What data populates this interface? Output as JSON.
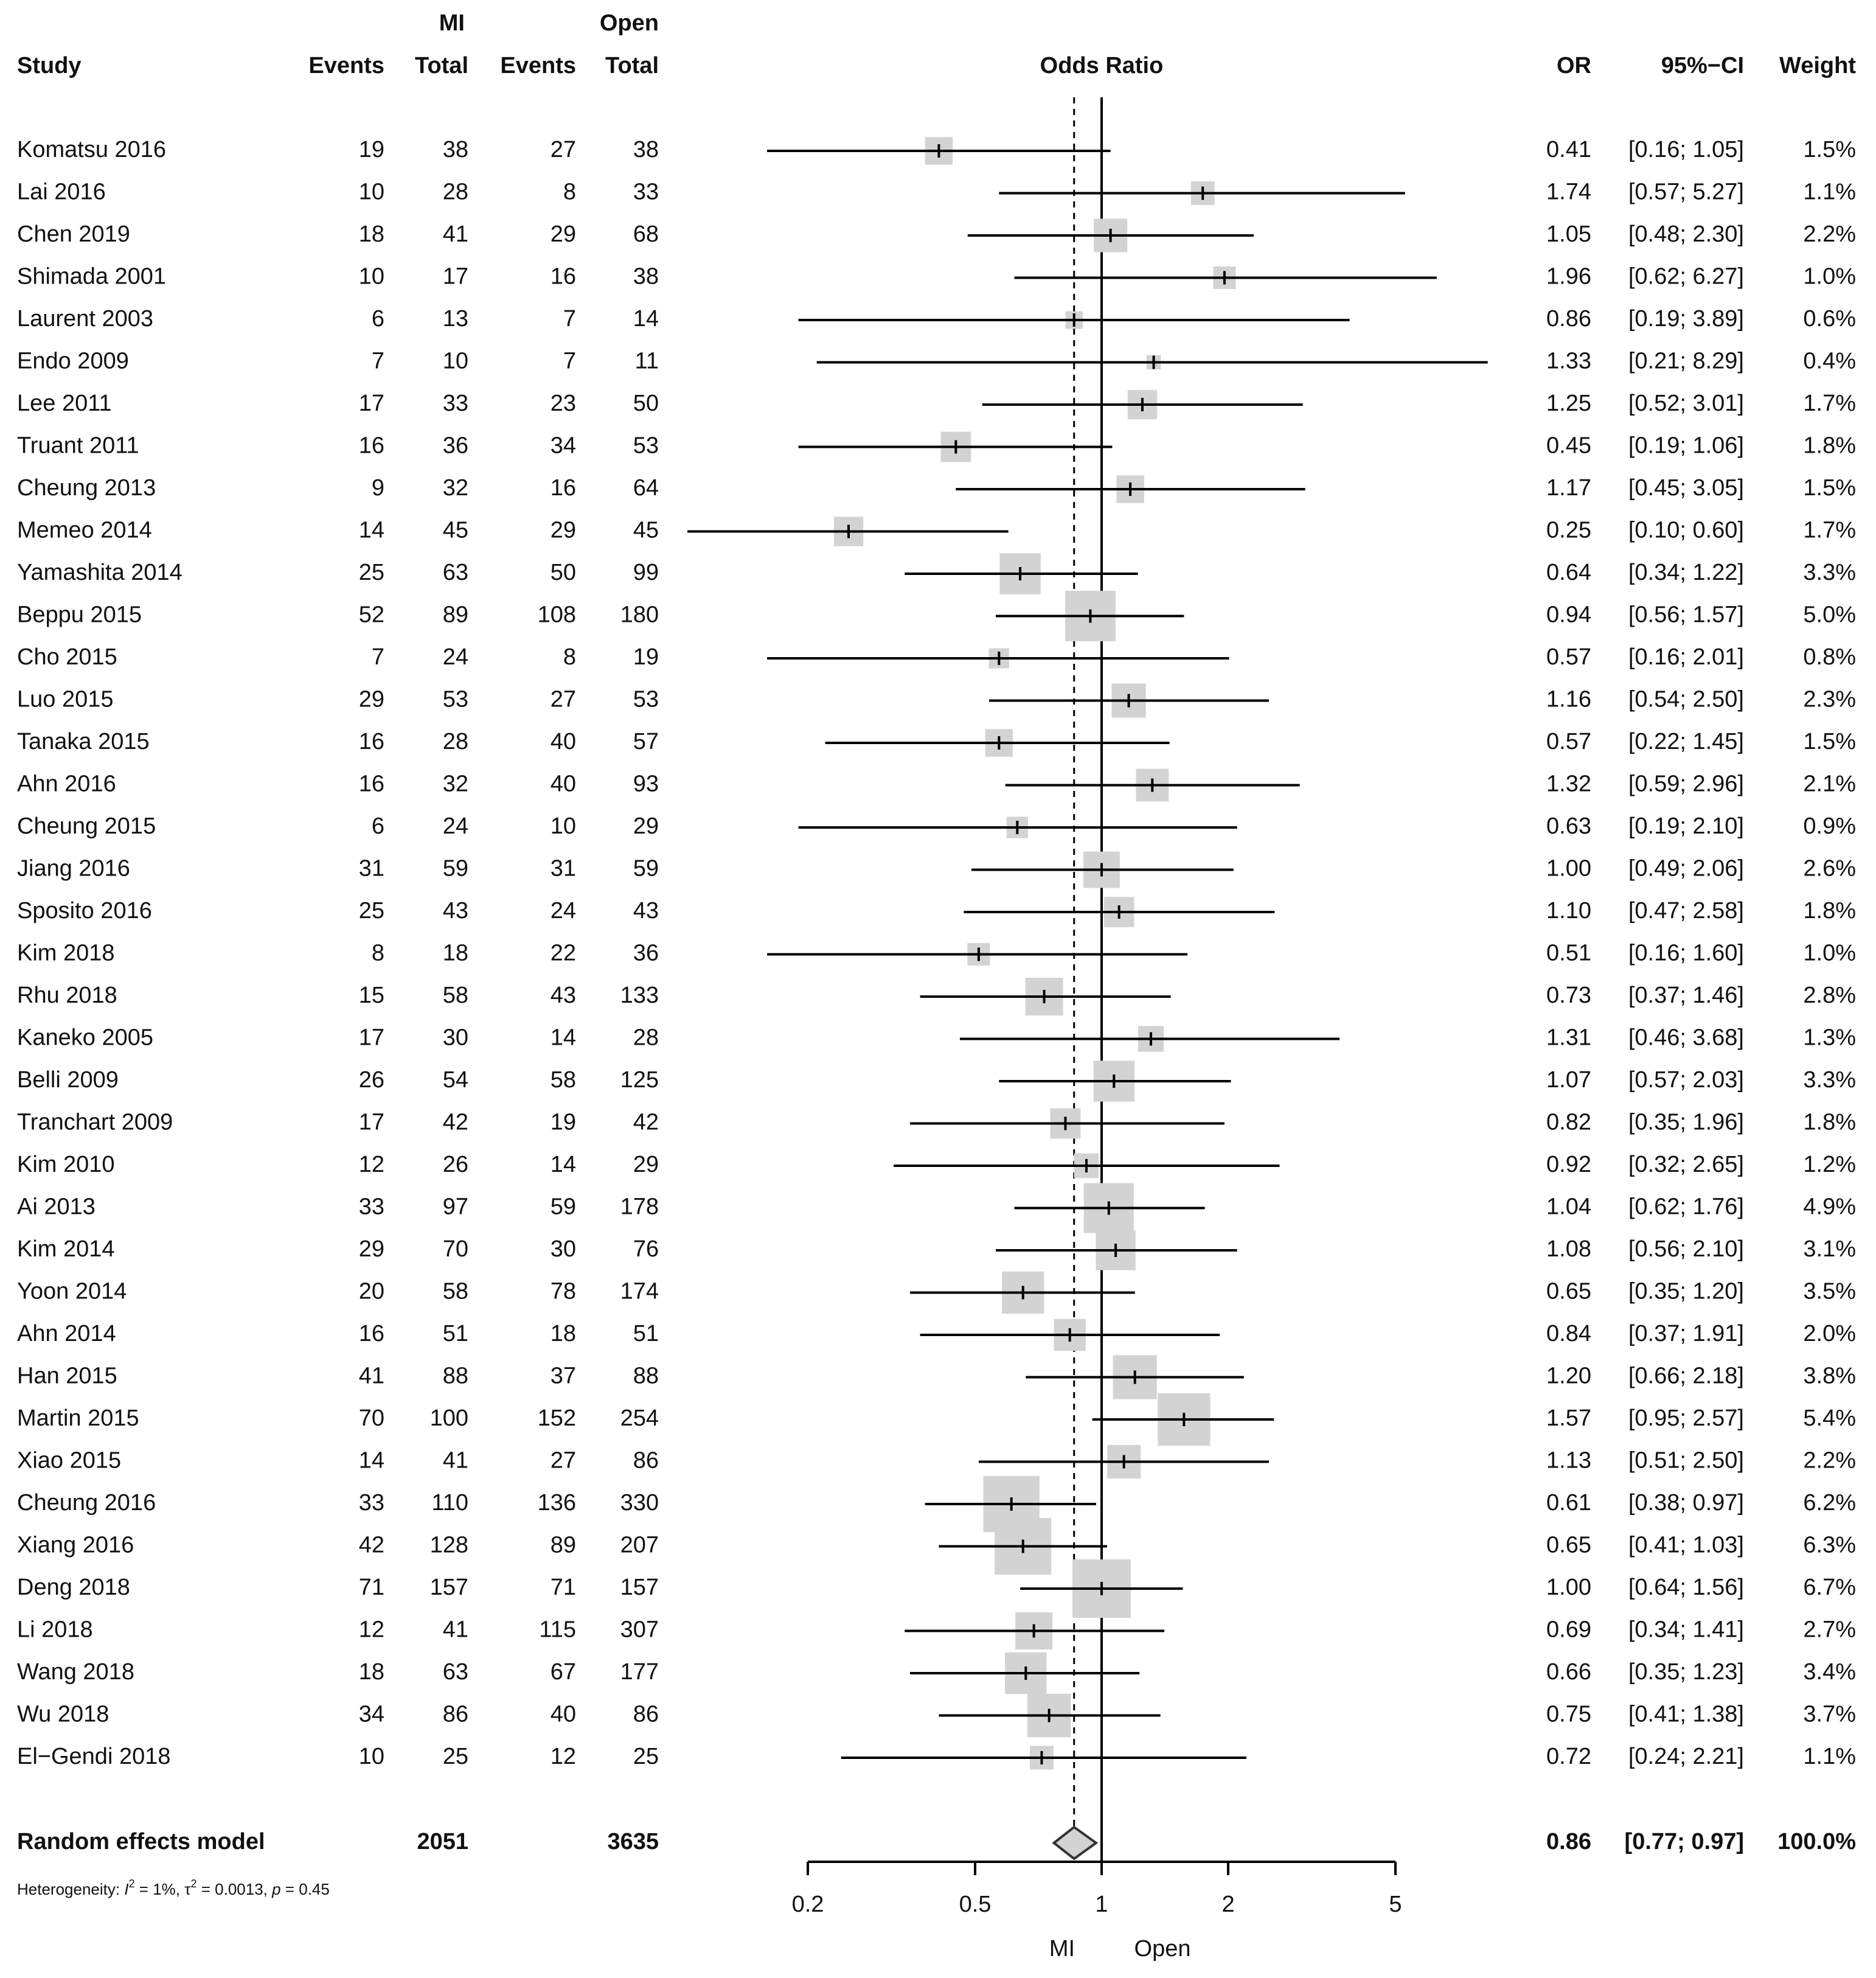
{
  "chart_data": {
    "type": "forest",
    "header": {
      "study": "Study",
      "group1": "MI",
      "group2": "Open",
      "events": "Events",
      "total": "Total",
      "plot_title": "Odds Ratio",
      "or": "OR",
      "ci": "95%−CI",
      "weight": "Weight"
    },
    "studies": [
      {
        "study": "Komatsu 2016",
        "e1": 19,
        "n1": 38,
        "e2": 27,
        "n2": 38,
        "or": 0.41,
        "ci_label": "[0.16; 1.05]",
        "lo": 0.16,
        "hi": 1.05,
        "weight_label": "1.5%",
        "weight": 1.5,
        "or_label": "0.41"
      },
      {
        "study": "Lai 2016",
        "e1": 10,
        "n1": 28,
        "e2": 8,
        "n2": 33,
        "or": 1.74,
        "ci_label": "[0.57; 5.27]",
        "lo": 0.57,
        "hi": 5.27,
        "weight_label": "1.1%",
        "weight": 1.1,
        "or_label": "1.74"
      },
      {
        "study": "Chen 2019",
        "e1": 18,
        "n1": 41,
        "e2": 29,
        "n2": 68,
        "or": 1.05,
        "ci_label": "[0.48; 2.30]",
        "lo": 0.48,
        "hi": 2.3,
        "weight_label": "2.2%",
        "weight": 2.2,
        "or_label": "1.05"
      },
      {
        "study": "Shimada 2001",
        "e1": 10,
        "n1": 17,
        "e2": 16,
        "n2": 38,
        "or": 1.96,
        "ci_label": "[0.62; 6.27]",
        "lo": 0.62,
        "hi": 6.27,
        "weight_label": "1.0%",
        "weight": 1.0,
        "or_label": "1.96"
      },
      {
        "study": "Laurent 2003",
        "e1": 6,
        "n1": 13,
        "e2": 7,
        "n2": 14,
        "or": 0.86,
        "ci_label": "[0.19; 3.89]",
        "lo": 0.19,
        "hi": 3.89,
        "weight_label": "0.6%",
        "weight": 0.6,
        "or_label": "0.86"
      },
      {
        "study": "Endo 2009",
        "e1": 7,
        "n1": 10,
        "e2": 7,
        "n2": 11,
        "or": 1.33,
        "ci_label": "[0.21; 8.29]",
        "lo": 0.21,
        "hi": 8.29,
        "weight_label": "0.4%",
        "weight": 0.4,
        "or_label": "1.33"
      },
      {
        "study": "Lee 2011",
        "e1": 17,
        "n1": 33,
        "e2": 23,
        "n2": 50,
        "or": 1.25,
        "ci_label": "[0.52; 3.01]",
        "lo": 0.52,
        "hi": 3.01,
        "weight_label": "1.7%",
        "weight": 1.7,
        "or_label": "1.25"
      },
      {
        "study": "Truant 2011",
        "e1": 16,
        "n1": 36,
        "e2": 34,
        "n2": 53,
        "or": 0.45,
        "ci_label": "[0.19; 1.06]",
        "lo": 0.19,
        "hi": 1.06,
        "weight_label": "1.8%",
        "weight": 1.8,
        "or_label": "0.45"
      },
      {
        "study": "Cheung 2013",
        "e1": 9,
        "n1": 32,
        "e2": 16,
        "n2": 64,
        "or": 1.17,
        "ci_label": "[0.45; 3.05]",
        "lo": 0.45,
        "hi": 3.05,
        "weight_label": "1.5%",
        "weight": 1.5,
        "or_label": "1.17"
      },
      {
        "study": "Memeo 2014",
        "e1": 14,
        "n1": 45,
        "e2": 29,
        "n2": 45,
        "or": 0.25,
        "ci_label": "[0.10; 0.60]",
        "lo": 0.1,
        "hi": 0.6,
        "weight_label": "1.7%",
        "weight": 1.7,
        "or_label": "0.25"
      },
      {
        "study": "Yamashita 2014",
        "e1": 25,
        "n1": 63,
        "e2": 50,
        "n2": 99,
        "or": 0.64,
        "ci_label": "[0.34; 1.22]",
        "lo": 0.34,
        "hi": 1.22,
        "weight_label": "3.3%",
        "weight": 3.3,
        "or_label": "0.64"
      },
      {
        "study": "Beppu 2015",
        "e1": 52,
        "n1": 89,
        "e2": 108,
        "n2": 180,
        "or": 0.94,
        "ci_label": "[0.56; 1.57]",
        "lo": 0.56,
        "hi": 1.57,
        "weight_label": "5.0%",
        "weight": 5.0,
        "or_label": "0.94"
      },
      {
        "study": "Cho 2015",
        "e1": 7,
        "n1": 24,
        "e2": 8,
        "n2": 19,
        "or": 0.57,
        "ci_label": "[0.16; 2.01]",
        "lo": 0.16,
        "hi": 2.01,
        "weight_label": "0.8%",
        "weight": 0.8,
        "or_label": "0.57"
      },
      {
        "study": "Luo 2015",
        "e1": 29,
        "n1": 53,
        "e2": 27,
        "n2": 53,
        "or": 1.16,
        "ci_label": "[0.54; 2.50]",
        "lo": 0.54,
        "hi": 2.5,
        "weight_label": "2.3%",
        "weight": 2.3,
        "or_label": "1.16"
      },
      {
        "study": "Tanaka 2015",
        "e1": 16,
        "n1": 28,
        "e2": 40,
        "n2": 57,
        "or": 0.57,
        "ci_label": "[0.22; 1.45]",
        "lo": 0.22,
        "hi": 1.45,
        "weight_label": "1.5%",
        "weight": 1.5,
        "or_label": "0.57"
      },
      {
        "study": "Ahn 2016",
        "e1": 16,
        "n1": 32,
        "e2": 40,
        "n2": 93,
        "or": 1.32,
        "ci_label": "[0.59; 2.96]",
        "lo": 0.59,
        "hi": 2.96,
        "weight_label": "2.1%",
        "weight": 2.1,
        "or_label": "1.32"
      },
      {
        "study": "Cheung 2015",
        "e1": 6,
        "n1": 24,
        "e2": 10,
        "n2": 29,
        "or": 0.63,
        "ci_label": "[0.19; 2.10]",
        "lo": 0.19,
        "hi": 2.1,
        "weight_label": "0.9%",
        "weight": 0.9,
        "or_label": "0.63"
      },
      {
        "study": "Jiang 2016",
        "e1": 31,
        "n1": 59,
        "e2": 31,
        "n2": 59,
        "or": 1.0,
        "ci_label": "[0.49; 2.06]",
        "lo": 0.49,
        "hi": 2.06,
        "weight_label": "2.6%",
        "weight": 2.6,
        "or_label": "1.00"
      },
      {
        "study": "Sposito 2016",
        "e1": 25,
        "n1": 43,
        "e2": 24,
        "n2": 43,
        "or": 1.1,
        "ci_label": "[0.47; 2.58]",
        "lo": 0.47,
        "hi": 2.58,
        "weight_label": "1.8%",
        "weight": 1.8,
        "or_label": "1.10"
      },
      {
        "study": "Kim 2018",
        "e1": 8,
        "n1": 18,
        "e2": 22,
        "n2": 36,
        "or": 0.51,
        "ci_label": "[0.16; 1.60]",
        "lo": 0.16,
        "hi": 1.6,
        "weight_label": "1.0%",
        "weight": 1.0,
        "or_label": "0.51"
      },
      {
        "study": "Rhu 2018",
        "e1": 15,
        "n1": 58,
        "e2": 43,
        "n2": 133,
        "or": 0.73,
        "ci_label": "[0.37; 1.46]",
        "lo": 0.37,
        "hi": 1.46,
        "weight_label": "2.8%",
        "weight": 2.8,
        "or_label": "0.73"
      },
      {
        "study": "Kaneko 2005",
        "e1": 17,
        "n1": 30,
        "e2": 14,
        "n2": 28,
        "or": 1.31,
        "ci_label": "[0.46; 3.68]",
        "lo": 0.46,
        "hi": 3.68,
        "weight_label": "1.3%",
        "weight": 1.3,
        "or_label": "1.31"
      },
      {
        "study": "Belli 2009",
        "e1": 26,
        "n1": 54,
        "e2": 58,
        "n2": 125,
        "or": 1.07,
        "ci_label": "[0.57; 2.03]",
        "lo": 0.57,
        "hi": 2.03,
        "weight_label": "3.3%",
        "weight": 3.3,
        "or_label": "1.07"
      },
      {
        "study": "Tranchart 2009",
        "e1": 17,
        "n1": 42,
        "e2": 19,
        "n2": 42,
        "or": 0.82,
        "ci_label": "[0.35; 1.96]",
        "lo": 0.35,
        "hi": 1.96,
        "weight_label": "1.8%",
        "weight": 1.8,
        "or_label": "0.82"
      },
      {
        "study": "Kim 2010",
        "e1": 12,
        "n1": 26,
        "e2": 14,
        "n2": 29,
        "or": 0.92,
        "ci_label": "[0.32; 2.65]",
        "lo": 0.32,
        "hi": 2.65,
        "weight_label": "1.2%",
        "weight": 1.2,
        "or_label": "0.92"
      },
      {
        "study": "Ai 2013",
        "e1": 33,
        "n1": 97,
        "e2": 59,
        "n2": 178,
        "or": 1.04,
        "ci_label": "[0.62; 1.76]",
        "lo": 0.62,
        "hi": 1.76,
        "weight_label": "4.9%",
        "weight": 4.9,
        "or_label": "1.04"
      },
      {
        "study": "Kim 2014",
        "e1": 29,
        "n1": 70,
        "e2": 30,
        "n2": 76,
        "or": 1.08,
        "ci_label": "[0.56; 2.10]",
        "lo": 0.56,
        "hi": 2.1,
        "weight_label": "3.1%",
        "weight": 3.1,
        "or_label": "1.08"
      },
      {
        "study": "Yoon 2014",
        "e1": 20,
        "n1": 58,
        "e2": 78,
        "n2": 174,
        "or": 0.65,
        "ci_label": "[0.35; 1.20]",
        "lo": 0.35,
        "hi": 1.2,
        "weight_label": "3.5%",
        "weight": 3.5,
        "or_label": "0.65"
      },
      {
        "study": "Ahn 2014",
        "e1": 16,
        "n1": 51,
        "e2": 18,
        "n2": 51,
        "or": 0.84,
        "ci_label": "[0.37; 1.91]",
        "lo": 0.37,
        "hi": 1.91,
        "weight_label": "2.0%",
        "weight": 2.0,
        "or_label": "0.84"
      },
      {
        "study": "Han 2015",
        "e1": 41,
        "n1": 88,
        "e2": 37,
        "n2": 88,
        "or": 1.2,
        "ci_label": "[0.66; 2.18]",
        "lo": 0.66,
        "hi": 2.18,
        "weight_label": "3.8%",
        "weight": 3.8,
        "or_label": "1.20"
      },
      {
        "study": "Martin 2015",
        "e1": 70,
        "n1": 100,
        "e2": 152,
        "n2": 254,
        "or": 1.57,
        "ci_label": "[0.95; 2.57]",
        "lo": 0.95,
        "hi": 2.57,
        "weight_label": "5.4%",
        "weight": 5.4,
        "or_label": "1.57"
      },
      {
        "study": "Xiao 2015",
        "e1": 14,
        "n1": 41,
        "e2": 27,
        "n2": 86,
        "or": 1.13,
        "ci_label": "[0.51; 2.50]",
        "lo": 0.51,
        "hi": 2.5,
        "weight_label": "2.2%",
        "weight": 2.2,
        "or_label": "1.13"
      },
      {
        "study": "Cheung 2016",
        "e1": 33,
        "n1": 110,
        "e2": 136,
        "n2": 330,
        "or": 0.61,
        "ci_label": "[0.38; 0.97]",
        "lo": 0.38,
        "hi": 0.97,
        "weight_label": "6.2%",
        "weight": 6.2,
        "or_label": "0.61"
      },
      {
        "study": "Xiang 2016",
        "e1": 42,
        "n1": 128,
        "e2": 89,
        "n2": 207,
        "or": 0.65,
        "ci_label": "[0.41; 1.03]",
        "lo": 0.41,
        "hi": 1.03,
        "weight_label": "6.3%",
        "weight": 6.3,
        "or_label": "0.65"
      },
      {
        "study": "Deng 2018",
        "e1": 71,
        "n1": 157,
        "e2": 71,
        "n2": 157,
        "or": 1.0,
        "ci_label": "[0.64; 1.56]",
        "lo": 0.64,
        "hi": 1.56,
        "weight_label": "6.7%",
        "weight": 6.7,
        "or_label": "1.00"
      },
      {
        "study": "Li 2018",
        "e1": 12,
        "n1": 41,
        "e2": 115,
        "n2": 307,
        "or": 0.69,
        "ci_label": "[0.34; 1.41]",
        "lo": 0.34,
        "hi": 1.41,
        "weight_label": "2.7%",
        "weight": 2.7,
        "or_label": "0.69"
      },
      {
        "study": "Wang 2018",
        "e1": 18,
        "n1": 63,
        "e2": 67,
        "n2": 177,
        "or": 0.66,
        "ci_label": "[0.35; 1.23]",
        "lo": 0.35,
        "hi": 1.23,
        "weight_label": "3.4%",
        "weight": 3.4,
        "or_label": "0.66"
      },
      {
        "study": "Wu 2018",
        "e1": 34,
        "n1": 86,
        "e2": 40,
        "n2": 86,
        "or": 0.75,
        "ci_label": "[0.41; 1.38]",
        "lo": 0.41,
        "hi": 1.38,
        "weight_label": "3.7%",
        "weight": 3.7,
        "or_label": "0.75"
      },
      {
        "study": "El−Gendi 2018",
        "e1": 10,
        "n1": 25,
        "e2": 12,
        "n2": 25,
        "or": 0.72,
        "ci_label": "[0.24; 2.21]",
        "lo": 0.24,
        "hi": 2.21,
        "weight_label": "1.1%",
        "weight": 1.1,
        "or_label": "0.72"
      }
    ],
    "summary": {
      "label": "Random effects model",
      "n1": 2051,
      "n2": 3635,
      "or": 0.86,
      "lo": 0.77,
      "hi": 0.97,
      "or_label": "0.86",
      "ci_label": "[0.77; 0.97]",
      "weight_label": "100.0%"
    },
    "heterogeneity": {
      "prefix": "Heterogeneity: ",
      "i2_symbol": "I",
      "i2_value": " = 1%, ",
      "tau_symbol": "τ",
      "tau_value": " = 0.0013, ",
      "p_symbol": "p",
      "p_value": " = 0.45"
    },
    "x_axis": {
      "scale": "log",
      "range": [
        0.2,
        5
      ],
      "ticks": [
        0.2,
        0.5,
        1,
        2,
        5
      ],
      "tick_labels": [
        "0.2",
        "0.5",
        "1",
        "2",
        "5"
      ],
      "label_left": "MI",
      "label_right": "Open"
    },
    "colors": {
      "square": "#d3d3d3",
      "line": "#000000",
      "text": "#111111"
    }
  }
}
